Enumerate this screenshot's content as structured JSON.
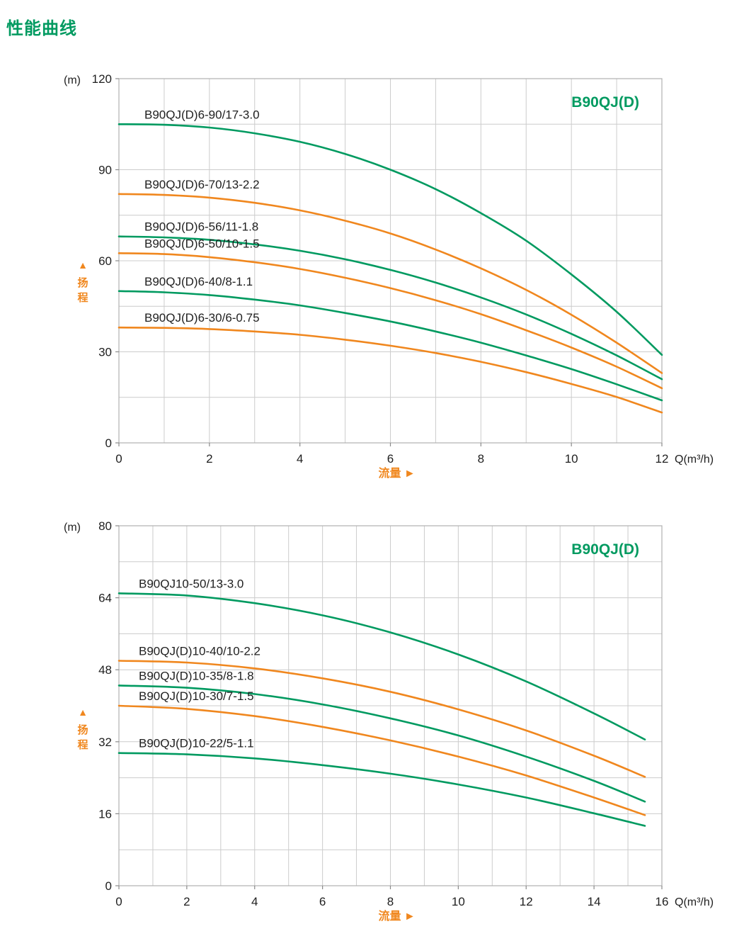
{
  "page": {
    "title": "性能曲线"
  },
  "icons": {
    "up_triangle": "▲",
    "right_triangle": "►"
  },
  "colors": {
    "green": "#009a60",
    "orange": "#f0871e",
    "grid": "#cccccc",
    "border": "#b0b0b0",
    "tick": "#8a8a8a",
    "text": "#1f1f1f"
  },
  "chart_data": [
    {
      "type": "line",
      "title": "B90QJ(D)",
      "y_unit": "(m)",
      "ylabel": "扬程",
      "xlabel": "流量",
      "x_unit": "Q(m³/h)",
      "xlim": [
        0,
        12
      ],
      "ylim": [
        0,
        120
      ],
      "x_grid_step": 1,
      "y_grid_step": 15,
      "x_ticks": [
        0,
        2,
        4,
        6,
        8,
        10,
        12
      ],
      "y_ticks": [
        0,
        30,
        60,
        90,
        120
      ],
      "grid": true,
      "legend": "labels-on-curves",
      "series": [
        {
          "name": "B90QJ(D)6-90/17-3.0",
          "color": "#009a60",
          "points": [
            [
              0,
              105
            ],
            [
              1,
              104.8
            ],
            [
              2,
              103.9
            ],
            [
              3,
              102
            ],
            [
              4,
              99.2
            ],
            [
              5,
              95.2
            ],
            [
              6,
              90
            ],
            [
              7,
              83.6
            ],
            [
              8,
              75.7
            ],
            [
              9,
              66.6
            ],
            [
              10,
              55.5
            ],
            [
              11,
              43.2
            ],
            [
              12,
              29
            ]
          ]
        },
        {
          "name": "B90QJ(D)6-70/13-2.2",
          "color": "#f0871e",
          "points": [
            [
              0,
              82
            ],
            [
              1,
              81.7
            ],
            [
              2,
              80.8
            ],
            [
              3,
              79.1
            ],
            [
              4,
              76.6
            ],
            [
              5,
              73.2
            ],
            [
              6,
              69
            ],
            [
              7,
              63.7
            ],
            [
              8,
              57.5
            ],
            [
              9,
              50.4
            ],
            [
              10,
              42.2
            ],
            [
              11,
              33
            ],
            [
              12,
              23
            ]
          ]
        },
        {
          "name": "B90QJ(D)6-56/11-1.8",
          "color": "#009a60",
          "points": [
            [
              0,
              68
            ],
            [
              1,
              67.7
            ],
            [
              2,
              66.9
            ],
            [
              3,
              65.4
            ],
            [
              4,
              63.3
            ],
            [
              5,
              60.5
            ],
            [
              6,
              57
            ],
            [
              7,
              52.8
            ],
            [
              8,
              47.9
            ],
            [
              9,
              42.3
            ],
            [
              10,
              35.9
            ],
            [
              11,
              28.8
            ],
            [
              12,
              21
            ]
          ]
        },
        {
          "name": "B90QJ(D)6-50/10-1.5",
          "color": "#f0871e",
          "points": [
            [
              0,
              62.5
            ],
            [
              1,
              62.2
            ],
            [
              2,
              61.2
            ],
            [
              3,
              59.5
            ],
            [
              4,
              57.3
            ],
            [
              5,
              54.4
            ],
            [
              6,
              51
            ],
            [
              7,
              47
            ],
            [
              8,
              42.4
            ],
            [
              9,
              37.1
            ],
            [
              10,
              31.4
            ],
            [
              11,
              25.1
            ],
            [
              12,
              18
            ]
          ]
        },
        {
          "name": "B90QJ(D)6-40/8-1.1",
          "color": "#009a60",
          "points": [
            [
              0,
              50
            ],
            [
              1,
              49.6
            ],
            [
              2,
              48.7
            ],
            [
              3,
              47.2
            ],
            [
              4,
              45.3
            ],
            [
              5,
              42.8
            ],
            [
              6,
              40
            ],
            [
              7,
              36.7
            ],
            [
              8,
              33
            ],
            [
              9,
              28.8
            ],
            [
              10,
              24.3
            ],
            [
              11,
              19.3
            ],
            [
              12,
              14
            ]
          ]
        },
        {
          "name": "B90QJ(D)6-30/6-0.75",
          "color": "#f0871e",
          "points": [
            [
              0,
              38
            ],
            [
              1,
              37.9
            ],
            [
              2,
              37.5
            ],
            [
              3,
              36.7
            ],
            [
              4,
              35.6
            ],
            [
              5,
              34
            ],
            [
              6,
              32
            ],
            [
              7,
              29.6
            ],
            [
              8,
              26.7
            ],
            [
              9,
              23.3
            ],
            [
              10,
              19.4
            ],
            [
              11,
              15.1
            ],
            [
              12,
              10
            ]
          ]
        }
      ]
    },
    {
      "type": "line",
      "title": "B90QJ(D)",
      "y_unit": "(m)",
      "ylabel": "扬程",
      "xlabel": "流量",
      "x_unit": "Q(m³/h)",
      "xlim": [
        0,
        16
      ],
      "ylim": [
        0,
        80
      ],
      "x_grid_step": 1,
      "y_grid_step": 8,
      "x_ticks": [
        0,
        2,
        4,
        6,
        8,
        10,
        12,
        14,
        16
      ],
      "y_ticks": [
        0,
        16,
        32,
        48,
        64,
        80
      ],
      "grid": true,
      "legend": "labels-on-curves",
      "series": [
        {
          "name": "B90QJ10-50/13-3.0",
          "color": "#009a60",
          "points": [
            [
              0,
              65
            ],
            [
              2,
              64.5
            ],
            [
              4,
              62.8
            ],
            [
              6,
              60.1
            ],
            [
              8,
              56.3
            ],
            [
              10,
              51.4
            ],
            [
              12,
              45.4
            ],
            [
              14,
              38.3
            ],
            [
              15.5,
              32.5
            ]
          ]
        },
        {
          "name": "B90QJ(D)10-40/10-2.2",
          "color": "#f0871e",
          "points": [
            [
              0,
              50
            ],
            [
              2,
              49.6
            ],
            [
              4,
              48.3
            ],
            [
              6,
              46.1
            ],
            [
              8,
              43.1
            ],
            [
              10,
              39.2
            ],
            [
              12,
              34.5
            ],
            [
              14,
              28.9
            ],
            [
              15.5,
              24.2
            ]
          ]
        },
        {
          "name": "B90QJ(D)10-35/8-1.8",
          "color": "#009a60",
          "points": [
            [
              0,
              44.5
            ],
            [
              2,
              44
            ],
            [
              4,
              42.6
            ],
            [
              6,
              40.3
            ],
            [
              8,
              37.2
            ],
            [
              10,
              33.4
            ],
            [
              12,
              28.7
            ],
            [
              14,
              23.3
            ],
            [
              15.5,
              18.7
            ]
          ]
        },
        {
          "name": "B90QJ(D)10-30/7-1.5",
          "color": "#f0871e",
          "points": [
            [
              0,
              40
            ],
            [
              2,
              39.3
            ],
            [
              4,
              37.7
            ],
            [
              6,
              35.3
            ],
            [
              8,
              32.3
            ],
            [
              10,
              28.7
            ],
            [
              12,
              24.5
            ],
            [
              14,
              19.6
            ],
            [
              15.5,
              15.7
            ]
          ]
        },
        {
          "name": "B90QJ(D)10-22/5-1.1",
          "color": "#009a60",
          "points": [
            [
              0,
              29.5
            ],
            [
              2,
              29.2
            ],
            [
              4,
              28.3
            ],
            [
              6,
              26.8
            ],
            [
              8,
              24.9
            ],
            [
              10,
              22.5
            ],
            [
              12,
              19.6
            ],
            [
              14,
              16.1
            ],
            [
              15.5,
              13.3
            ]
          ]
        }
      ]
    }
  ]
}
